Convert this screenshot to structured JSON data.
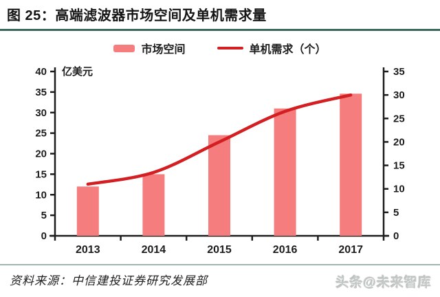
{
  "figure": {
    "title": "图 25：高端滤波器市场空间及单机需求量"
  },
  "legend": {
    "items": [
      {
        "label": "市场空间",
        "swatch": "bar-swatch",
        "color": "#F67D7D"
      },
      {
        "label": "单机需求（个）",
        "swatch": "line-swatch",
        "color": "#D31F21"
      }
    ],
    "position": "top"
  },
  "chart_data": {
    "type": "bar+line",
    "title": "高端滤波器市场空间及单机需求量",
    "categories": [
      "2013",
      "2014",
      "2015",
      "2016",
      "2017"
    ],
    "series": [
      {
        "name": "市场空间",
        "type": "bar",
        "axis": "left",
        "color": "#F67D7D",
        "values": [
          12,
          15,
          24.5,
          31,
          34.6
        ]
      },
      {
        "name": "单机需求（个）",
        "type": "line",
        "axis": "right",
        "color": "#D31F21",
        "values": [
          11,
          13.5,
          20,
          26.5,
          30
        ]
      }
    ],
    "left_axis": {
      "unit_label": "亿美元",
      "min": 0,
      "max": 40,
      "step": 5,
      "ticks": [
        0,
        5,
        10,
        15,
        20,
        25,
        30,
        35,
        40
      ]
    },
    "right_axis": {
      "min": 0,
      "max": 35,
      "step": 5,
      "ticks": [
        0,
        5,
        10,
        15,
        20,
        25,
        30,
        35
      ]
    },
    "grid": false,
    "legend_position": "top",
    "axis_color": "#1c1c1c"
  },
  "footer": {
    "source": "资料来源：中信建投证券研究发展部",
    "watermark": "头条@未来智库"
  },
  "colors": {
    "bar": "#F67D7D",
    "line": "#D31F21",
    "title_rule": "#3c655e",
    "footer_rule": "#9fb5b0",
    "axis": "#1c1c1c",
    "watermark": "#c4c9c8"
  }
}
